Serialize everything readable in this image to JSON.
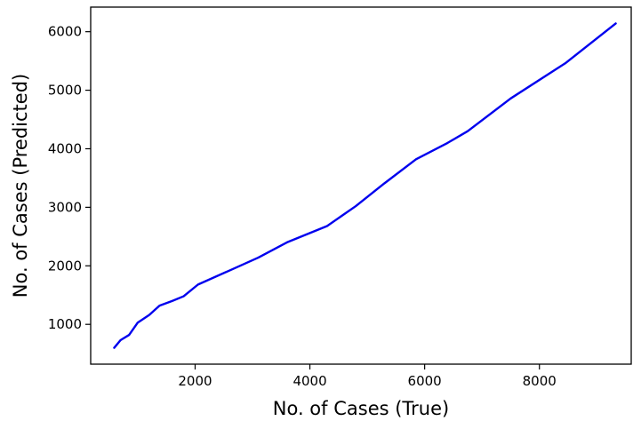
{
  "chart_data": {
    "type": "line",
    "xlabel": "No. of Cases (True)",
    "ylabel": "No. of Cases (Predicted)",
    "xlim": [
      180,
      9600
    ],
    "ylim": [
      320,
      6420
    ],
    "xticks": [
      2000,
      4000,
      6000,
      8000
    ],
    "yticks": [
      1000,
      2000,
      3000,
      4000,
      5000,
      6000
    ],
    "grid": false,
    "series": [
      {
        "color": "#0000ee",
        "x": [
          590,
          700,
          850,
          1000,
          1200,
          1380,
          1600,
          1800,
          2050,
          2600,
          3100,
          3600,
          4300,
          4800,
          5300,
          5850,
          6400,
          6750,
          7500,
          8450,
          9330
        ],
        "y": [
          600,
          730,
          820,
          1030,
          1160,
          1320,
          1400,
          1480,
          1680,
          1920,
          2140,
          2400,
          2680,
          3020,
          3410,
          3820,
          4100,
          4300,
          4860,
          5460,
          6140
        ]
      }
    ]
  }
}
